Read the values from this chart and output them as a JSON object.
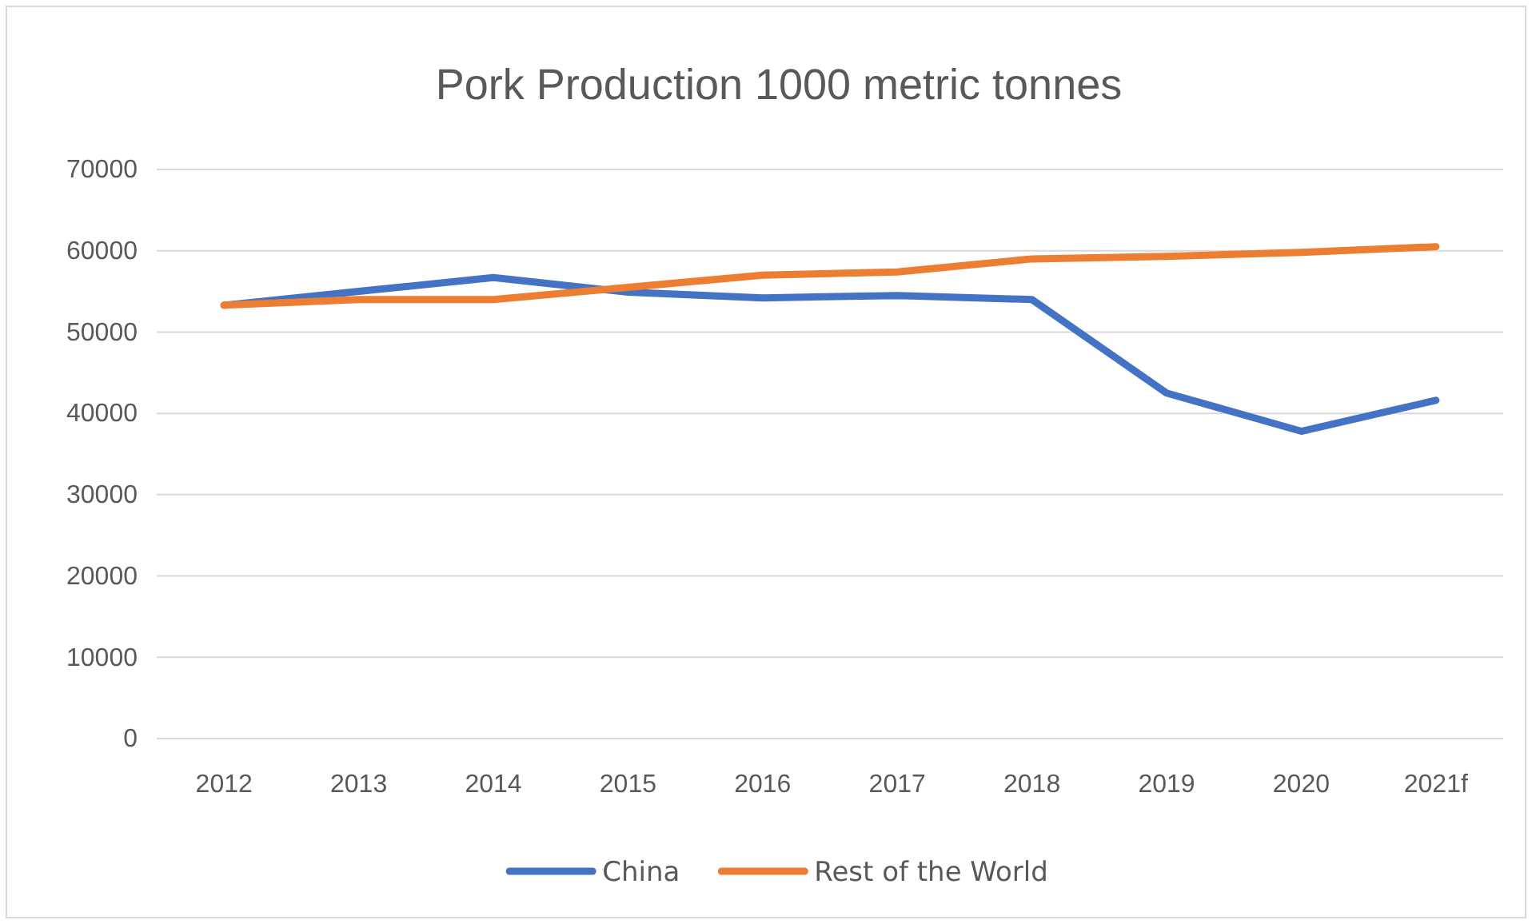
{
  "chart_data": {
    "type": "line",
    "title": "Pork Production 1000 metric tonnes",
    "categories": [
      "2012",
      "2013",
      "2014",
      "2015",
      "2016",
      "2017",
      "2018",
      "2019",
      "2020",
      "2021f"
    ],
    "series": [
      {
        "name": "China",
        "color": "#4472c4",
        "values": [
          53300,
          55000,
          56700,
          54900,
          54200,
          54500,
          54000,
          42500,
          37800,
          41600
        ]
      },
      {
        "name": "Rest of the World",
        "color": "#ed7d31",
        "values": [
          53300,
          54000,
          54000,
          55500,
          57000,
          57400,
          59000,
          59300,
          59800,
          60500
        ]
      }
    ],
    "ylim": [
      0,
      70000
    ],
    "yticks": [
      0,
      10000,
      20000,
      30000,
      40000,
      50000,
      60000,
      70000
    ],
    "grid": "y",
    "legend": "bottom",
    "line_style": "solid",
    "marker": "none"
  }
}
